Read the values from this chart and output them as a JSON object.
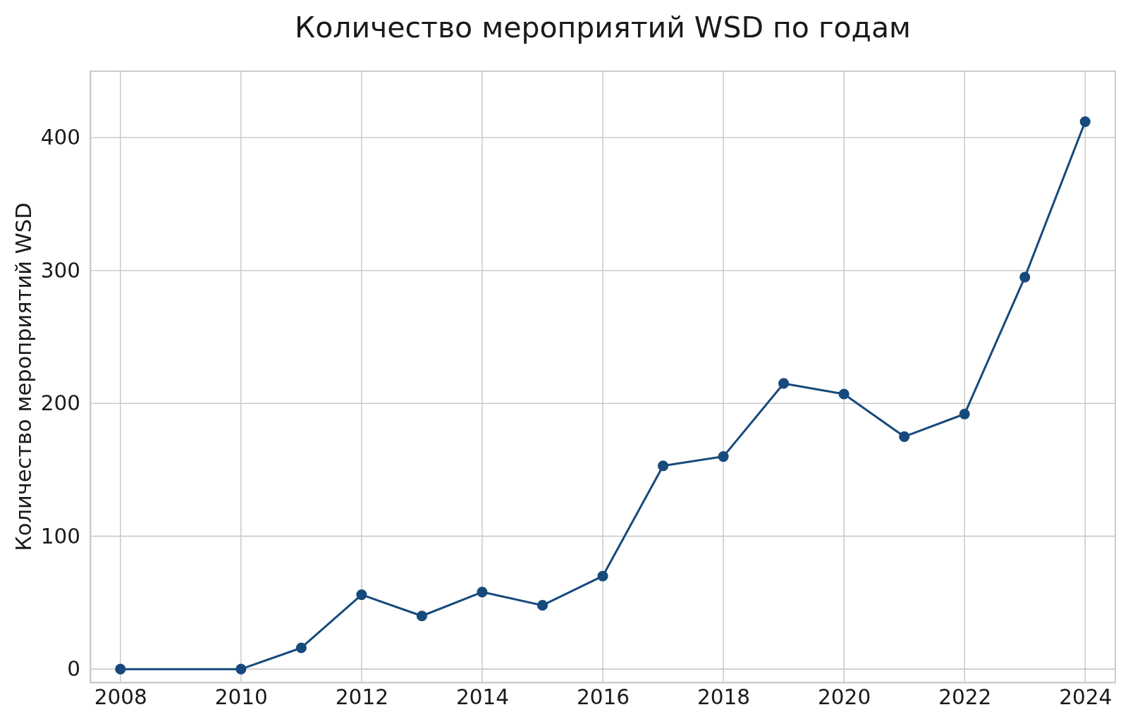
{
  "chart_data": {
    "type": "line",
    "title": "Количество мероприятий WSD по годам",
    "ylabel": "Количество мероприятий WSD",
    "x": [
      2008,
      2010,
      2011,
      2012,
      2013,
      2014,
      2015,
      2016,
      2017,
      2018,
      2019,
      2020,
      2021,
      2022,
      2023,
      2024
    ],
    "series": [
      {
        "color": "#174a7c",
        "values": [
          0,
          0,
          16,
          56,
          40,
          58,
          48,
          70,
          153,
          160,
          215,
          207,
          175,
          192,
          295,
          412
        ]
      }
    ],
    "xlim": [
      2007.5,
      2024.5
    ],
    "xticks": [
      2008,
      2010,
      2012,
      2014,
      2016,
      2018,
      2020,
      2022,
      2024
    ],
    "ylim": [
      -10,
      450
    ],
    "yticks": [
      0,
      100,
      200,
      300,
      400
    ],
    "grid": true,
    "marker": "circle",
    "line_style": "solid"
  }
}
